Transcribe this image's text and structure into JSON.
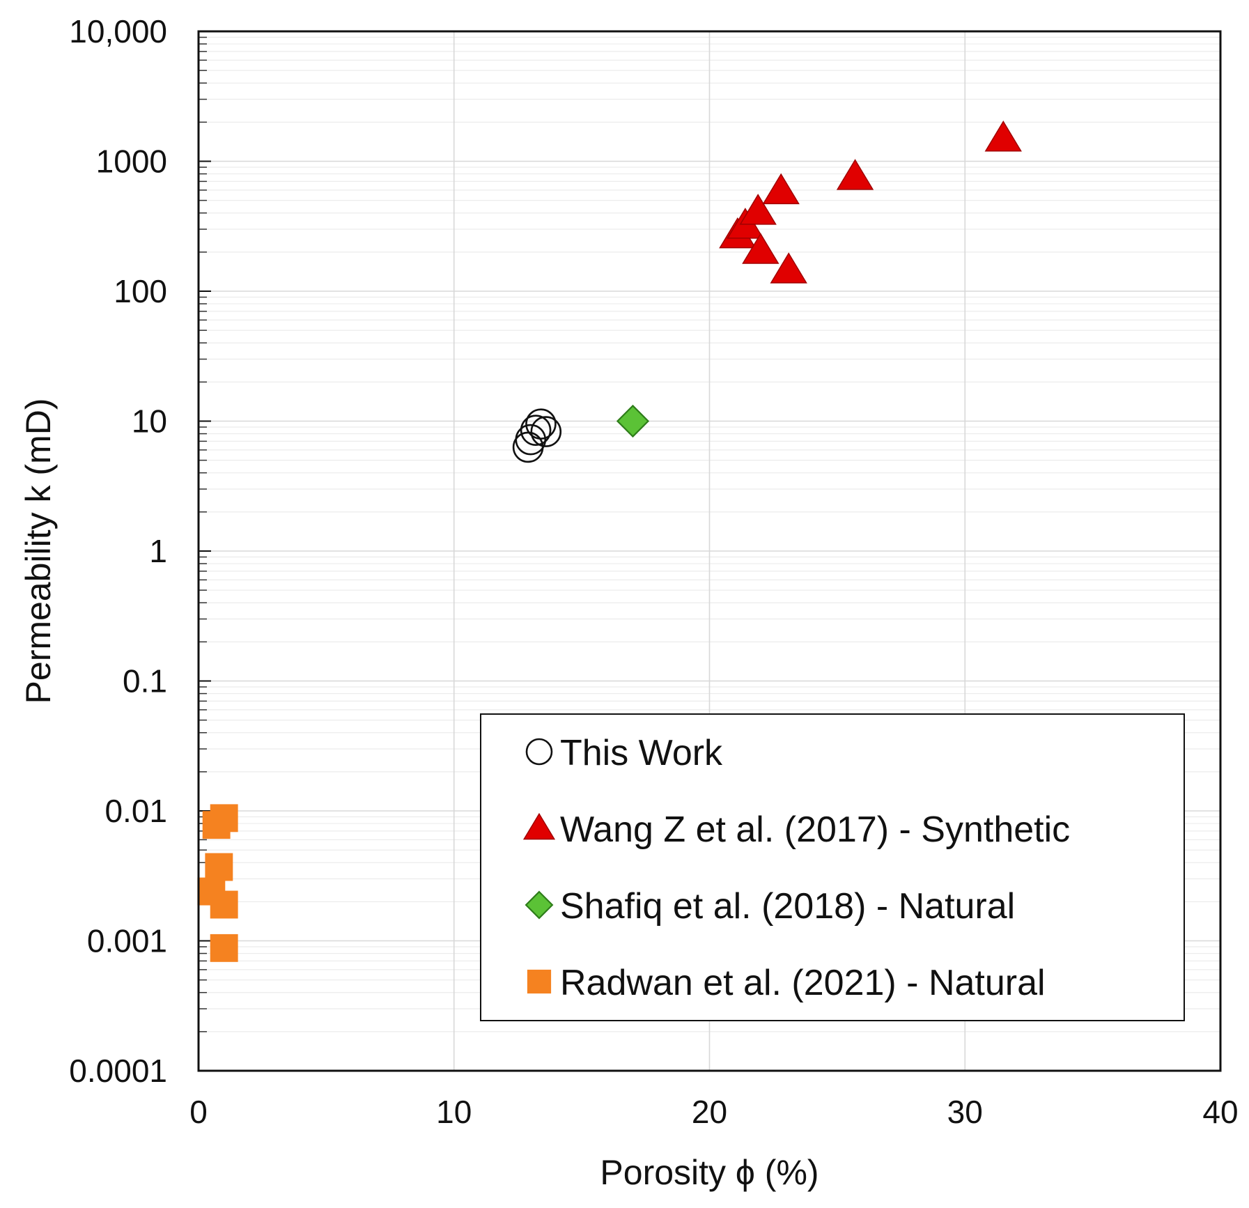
{
  "chart_data": {
    "type": "scatter",
    "title": "",
    "xlabel": "Porosity ϕ (%)",
    "ylabel": "Permeability k (mD)",
    "xlim": [
      0,
      40
    ],
    "ylim": [
      0.0001,
      10000
    ],
    "yscale": "log",
    "grid": true,
    "legend_position": "bottom-right",
    "x_ticks": [
      0,
      10,
      20,
      30,
      40
    ],
    "x_tick_labels": [
      "0",
      "10",
      "20",
      "30",
      "40"
    ],
    "y_ticks": [
      10000,
      1000,
      100,
      10,
      1,
      0.1,
      0.01,
      0.001,
      0.0001
    ],
    "y_tick_labels": [
      "10,000",
      "1000",
      "100",
      "10",
      "1",
      "0.1",
      "0.01",
      "0.001",
      "0.0001"
    ],
    "series": [
      {
        "name": "This Work",
        "marker": "circle-open",
        "color": "#111111",
        "points": [
          {
            "x": 12.9,
            "y": 6.3
          },
          {
            "x": 13.0,
            "y": 7.2
          },
          {
            "x": 13.2,
            "y": 8.5
          },
          {
            "x": 13.4,
            "y": 9.5
          },
          {
            "x": 13.6,
            "y": 8.3
          }
        ]
      },
      {
        "name": "Wang Z et al. (2017) - Synthetic",
        "marker": "triangle",
        "color": "#e00000",
        "points": [
          {
            "x": 21.1,
            "y": 270
          },
          {
            "x": 21.4,
            "y": 320
          },
          {
            "x": 21.9,
            "y": 410
          },
          {
            "x": 22.0,
            "y": 205
          },
          {
            "x": 22.8,
            "y": 590
          },
          {
            "x": 23.1,
            "y": 145
          },
          {
            "x": 25.7,
            "y": 760
          },
          {
            "x": 31.5,
            "y": 1500
          }
        ]
      },
      {
        "name": "Shafiq et al. (2018) - Natural",
        "marker": "diamond",
        "color": "#5bc236",
        "points": [
          {
            "x": 17.0,
            "y": 10
          }
        ]
      },
      {
        "name": "Radwan et al. (2021) - Natural",
        "marker": "square",
        "color": "#f58220",
        "points": [
          {
            "x": 0.7,
            "y": 0.0078
          },
          {
            "x": 1.0,
            "y": 0.0088
          },
          {
            "x": 0.8,
            "y": 0.0037
          },
          {
            "x": 0.5,
            "y": 0.0024
          },
          {
            "x": 1.0,
            "y": 0.0019
          },
          {
            "x": 1.0,
            "y": 0.00088
          }
        ]
      }
    ]
  }
}
